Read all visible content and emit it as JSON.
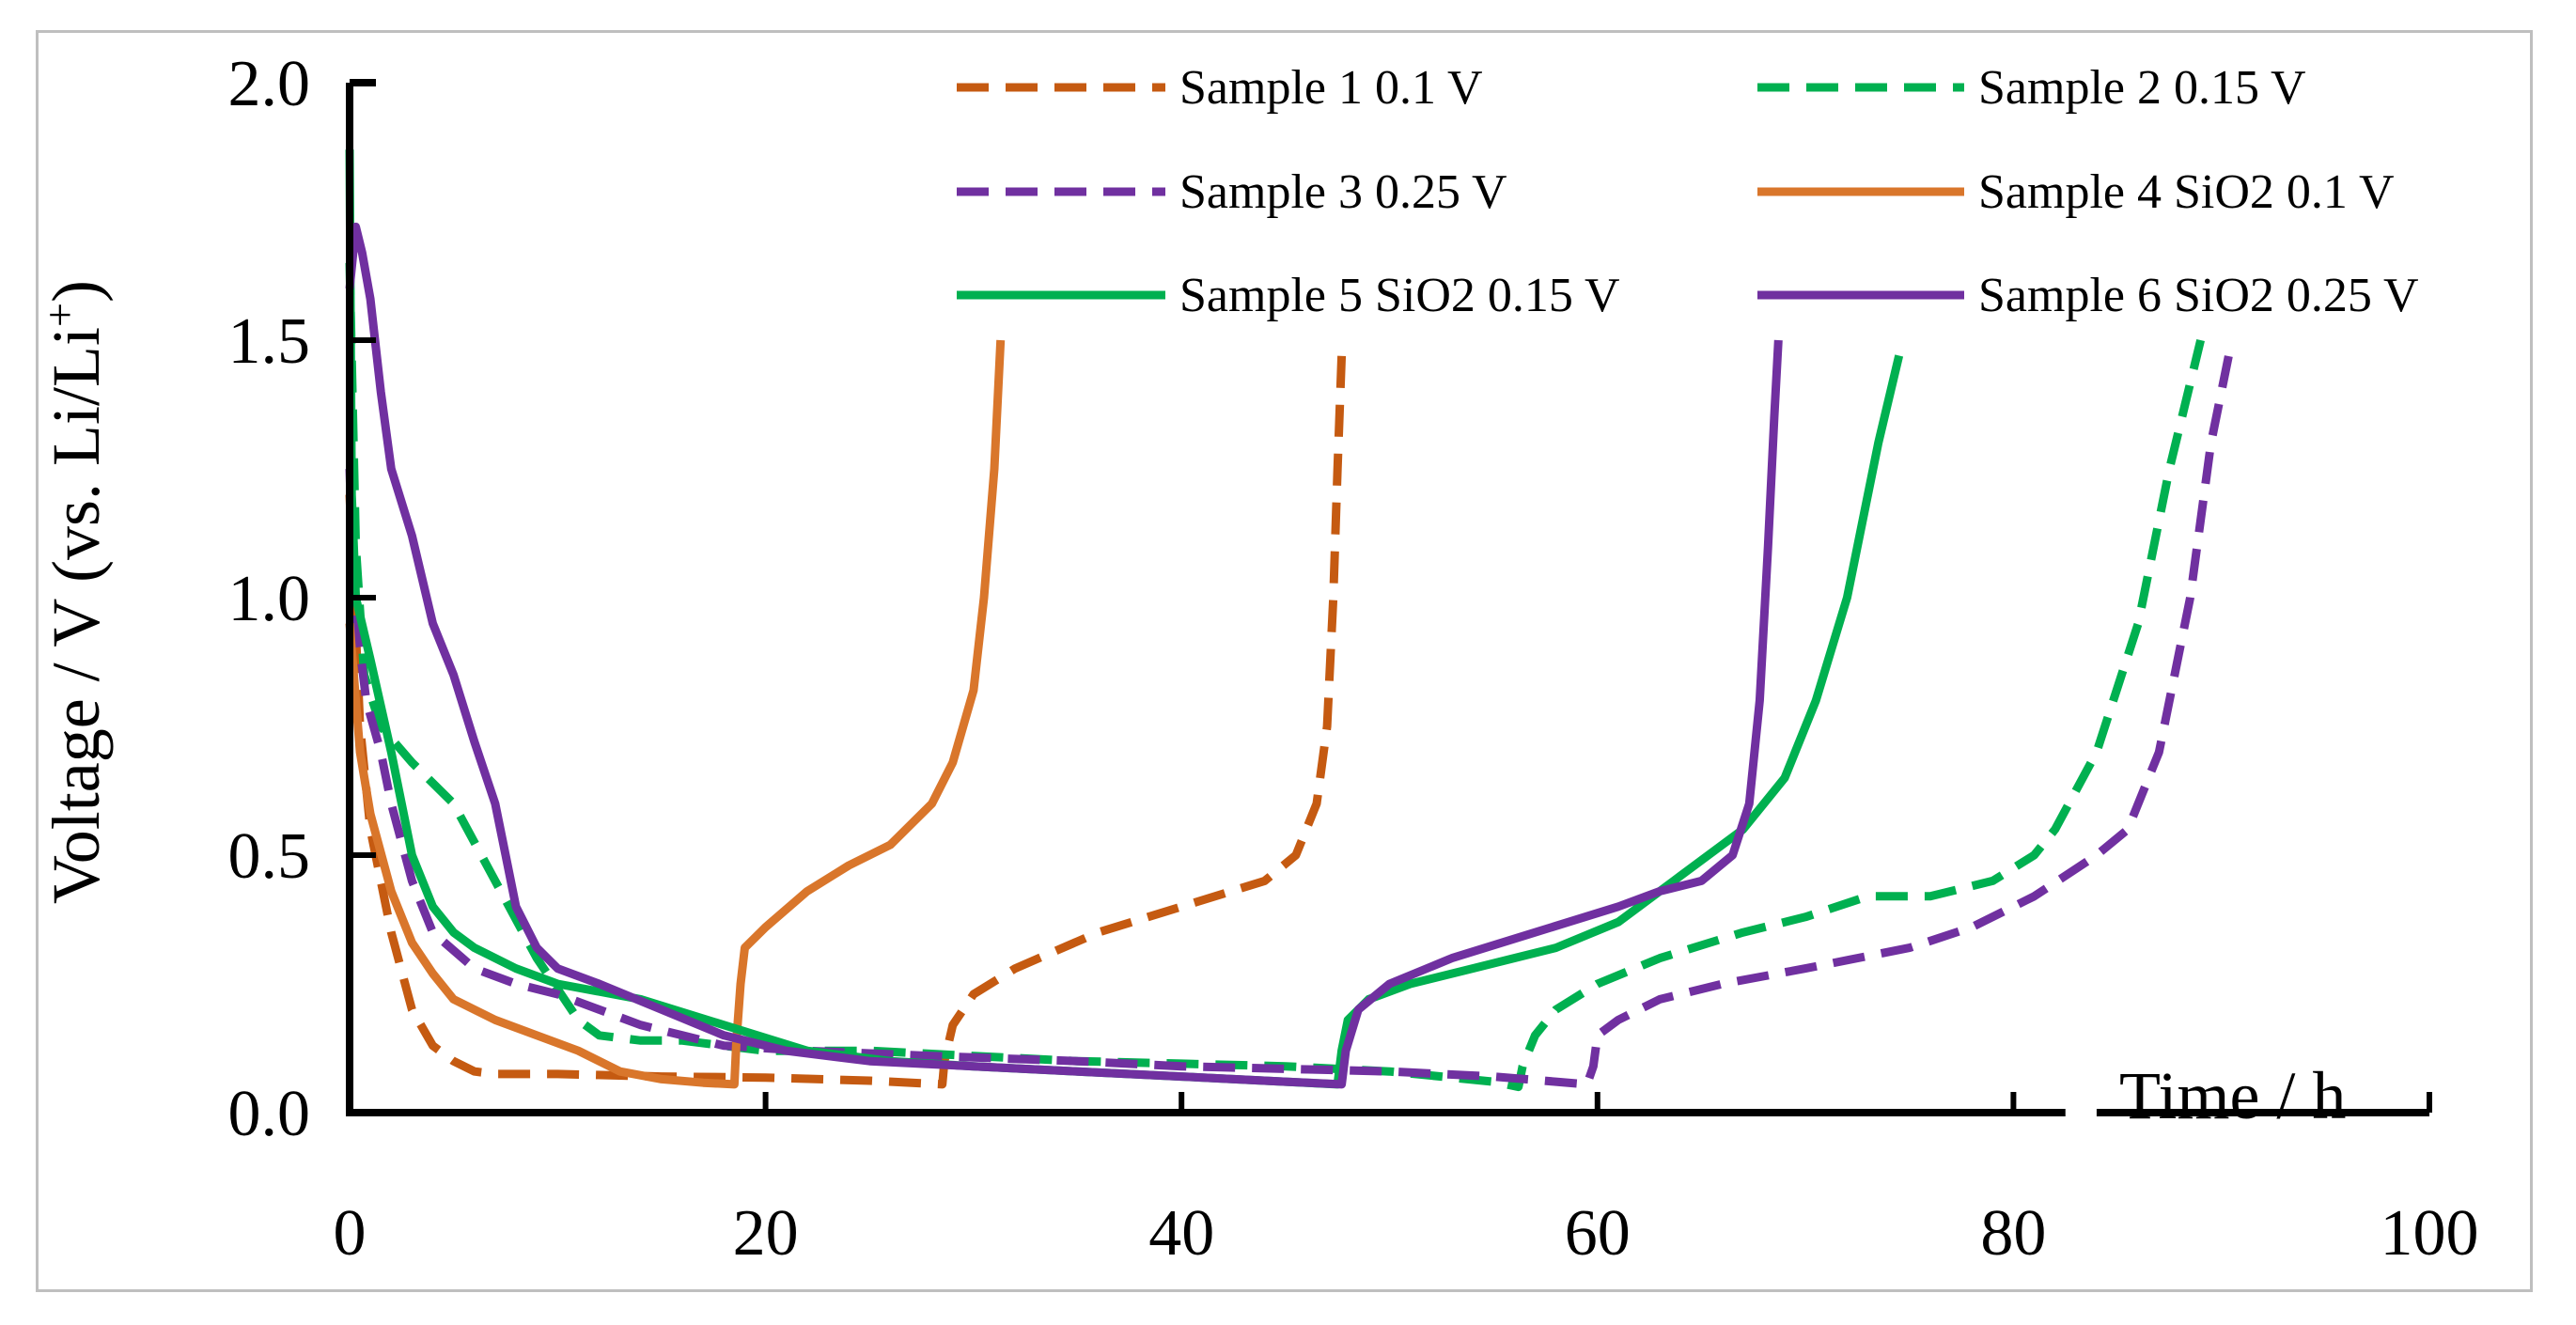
{
  "chart_data": {
    "type": "line",
    "title": "",
    "xlabel": "Time / h",
    "ylabel": "Voltage / V (vs. Li/Li",
    "ylabel_sup": "+",
    "ylabel_end": ")",
    "xlim": [
      0,
      100
    ],
    "ylim": [
      0,
      2
    ],
    "xticks": [
      0,
      20,
      40,
      60,
      80,
      100
    ],
    "yticks": [
      0,
      0.5,
      1,
      1.5,
      2
    ],
    "xtick_labels": [
      "0",
      "20",
      "40",
      "60",
      "80",
      "100"
    ],
    "ytick_labels": [
      "0.0",
      "0.5",
      "1.0",
      "1.5",
      "2.0"
    ],
    "grid": false,
    "legend_position": "top-right",
    "series": [
      {
        "name": "Sample 1 0.1 V",
        "color": "#c55a11",
        "dash": "dashed",
        "points": [
          [
            0,
            1.2
          ],
          [
            0.5,
            0.75
          ],
          [
            1,
            0.55
          ],
          [
            2,
            0.35
          ],
          [
            3,
            0.2
          ],
          [
            4,
            0.13
          ],
          [
            5,
            0.1
          ],
          [
            6,
            0.08
          ],
          [
            7,
            0.075
          ],
          [
            10,
            0.075
          ],
          [
            15,
            0.07
          ],
          [
            20,
            0.068
          ],
          [
            25,
            0.062
          ],
          [
            28.5,
            0.055
          ],
          [
            28.6,
            0.1
          ],
          [
            29,
            0.17
          ],
          [
            30,
            0.23
          ],
          [
            32,
            0.28
          ],
          [
            36,
            0.35
          ],
          [
            40,
            0.4
          ],
          [
            44,
            0.45
          ],
          [
            45.5,
            0.5
          ],
          [
            46.5,
            0.6
          ],
          [
            47,
            0.75
          ],
          [
            47.3,
            1.0
          ],
          [
            47.5,
            1.25
          ],
          [
            47.7,
            1.47
          ]
        ]
      },
      {
        "name": "Sample 2 0.15 V",
        "color": "#00b050",
        "dash": "dashed",
        "points": [
          [
            0,
            1.65
          ],
          [
            0.3,
            1.1
          ],
          [
            0.7,
            0.85
          ],
          [
            1.5,
            0.75
          ],
          [
            3,
            0.68
          ],
          [
            5,
            0.6
          ],
          [
            7,
            0.45
          ],
          [
            9,
            0.3
          ],
          [
            11,
            0.18
          ],
          [
            12,
            0.15
          ],
          [
            14,
            0.14
          ],
          [
            16,
            0.14
          ],
          [
            18,
            0.13
          ],
          [
            20,
            0.12
          ],
          [
            25,
            0.12
          ],
          [
            30,
            0.11
          ],
          [
            35,
            0.1
          ],
          [
            40,
            0.095
          ],
          [
            45,
            0.09
          ],
          [
            50,
            0.08
          ],
          [
            55,
            0.06
          ],
          [
            56.2,
            0.05
          ],
          [
            56.4,
            0.09
          ],
          [
            57,
            0.15
          ],
          [
            58,
            0.2
          ],
          [
            60,
            0.25
          ],
          [
            63,
            0.3
          ],
          [
            67,
            0.35
          ],
          [
            70,
            0.38
          ],
          [
            73,
            0.42
          ],
          [
            76,
            0.42
          ],
          [
            79,
            0.45
          ],
          [
            81,
            0.5
          ],
          [
            82,
            0.55
          ],
          [
            84,
            0.7
          ],
          [
            86,
            0.95
          ],
          [
            87.5,
            1.25
          ],
          [
            89,
            1.5
          ]
        ]
      },
      {
        "name": "Sample 3 0.25 V",
        "color": "#7030a0",
        "dash": "dashed",
        "points": [
          [
            0,
            1.25
          ],
          [
            0.2,
            1.0
          ],
          [
            0.8,
            0.8
          ],
          [
            1.5,
            0.7
          ],
          [
            2,
            0.6
          ],
          [
            3,
            0.45
          ],
          [
            4,
            0.35
          ],
          [
            6,
            0.28
          ],
          [
            8,
            0.25
          ],
          [
            10,
            0.23
          ],
          [
            12,
            0.2
          ],
          [
            14,
            0.17
          ],
          [
            16,
            0.15
          ],
          [
            18,
            0.13
          ],
          [
            22,
            0.12
          ],
          [
            28,
            0.11
          ],
          [
            35,
            0.1
          ],
          [
            40,
            0.09
          ],
          [
            45,
            0.085
          ],
          [
            50,
            0.08
          ],
          [
            55,
            0.07
          ],
          [
            58,
            0.06
          ],
          [
            59.5,
            0.055
          ],
          [
            59.8,
            0.09
          ],
          [
            60,
            0.15
          ],
          [
            61,
            0.18
          ],
          [
            63,
            0.22
          ],
          [
            66,
            0.25
          ],
          [
            70,
            0.28
          ],
          [
            75,
            0.32
          ],
          [
            78,
            0.36
          ],
          [
            81,
            0.42
          ],
          [
            84,
            0.5
          ],
          [
            85.5,
            0.55
          ],
          [
            87,
            0.7
          ],
          [
            88.5,
            1.0
          ],
          [
            89.5,
            1.3
          ],
          [
            90.5,
            1.5
          ]
        ]
      },
      {
        "name": "Sample 4 SiO2 0.1 V",
        "color": "#d9762b",
        "dash": "solid",
        "points": [
          [
            0,
            0.95
          ],
          [
            0.5,
            0.7
          ],
          [
            1,
            0.58
          ],
          [
            2,
            0.43
          ],
          [
            3,
            0.33
          ],
          [
            4,
            0.27
          ],
          [
            5,
            0.22
          ],
          [
            7,
            0.18
          ],
          [
            9,
            0.15
          ],
          [
            11,
            0.12
          ],
          [
            13,
            0.08
          ],
          [
            15,
            0.065
          ],
          [
            17,
            0.058
          ],
          [
            18.5,
            0.055
          ],
          [
            18.6,
            0.14
          ],
          [
            18.8,
            0.25
          ],
          [
            19,
            0.32
          ],
          [
            20,
            0.36
          ],
          [
            22,
            0.43
          ],
          [
            24,
            0.48
          ],
          [
            26,
            0.52
          ],
          [
            28,
            0.6
          ],
          [
            29,
            0.68
          ],
          [
            30,
            0.82
          ],
          [
            30.5,
            1.0
          ],
          [
            31,
            1.25
          ],
          [
            31.3,
            1.5
          ]
        ]
      },
      {
        "name": "Sample 5 SiO2 0.15 V",
        "color": "#00b050",
        "dash": "solid",
        "points": [
          [
            0,
            1.87
          ],
          [
            0.1,
            1.2
          ],
          [
            0.3,
            1.0
          ],
          [
            1,
            0.88
          ],
          [
            2,
            0.7
          ],
          [
            3,
            0.5
          ],
          [
            4,
            0.4
          ],
          [
            5,
            0.35
          ],
          [
            6,
            0.32
          ],
          [
            8,
            0.28
          ],
          [
            10,
            0.25
          ],
          [
            14,
            0.22
          ],
          [
            18,
            0.17
          ],
          [
            22,
            0.12
          ],
          [
            26,
            0.1
          ],
          [
            30,
            0.09
          ],
          [
            35,
            0.08
          ],
          [
            40,
            0.07
          ],
          [
            45,
            0.06
          ],
          [
            47.5,
            0.055
          ],
          [
            47.7,
            0.12
          ],
          [
            48,
            0.18
          ],
          [
            49,
            0.22
          ],
          [
            51,
            0.25
          ],
          [
            54,
            0.28
          ],
          [
            58,
            0.32
          ],
          [
            61,
            0.37
          ],
          [
            64,
            0.46
          ],
          [
            67,
            0.55
          ],
          [
            69,
            0.65
          ],
          [
            70.5,
            0.8
          ],
          [
            72,
            1.0
          ],
          [
            73.5,
            1.3
          ],
          [
            74.5,
            1.47
          ]
        ]
      },
      {
        "name": "Sample 6 SiO2 0.25 V",
        "color": "#7030a0",
        "dash": "solid",
        "points": [
          [
            0,
            1.6
          ],
          [
            0.3,
            1.72
          ],
          [
            0.6,
            1.67
          ],
          [
            1,
            1.58
          ],
          [
            1.5,
            1.4
          ],
          [
            2,
            1.25
          ],
          [
            3,
            1.12
          ],
          [
            4,
            0.95
          ],
          [
            5,
            0.85
          ],
          [
            6,
            0.72
          ],
          [
            7,
            0.6
          ],
          [
            7.5,
            0.5
          ],
          [
            8,
            0.4
          ],
          [
            9,
            0.32
          ],
          [
            10,
            0.28
          ],
          [
            12,
            0.25
          ],
          [
            15,
            0.2
          ],
          [
            18,
            0.15
          ],
          [
            21,
            0.12
          ],
          [
            25,
            0.1
          ],
          [
            30,
            0.09
          ],
          [
            35,
            0.08
          ],
          [
            40,
            0.07
          ],
          [
            45,
            0.06
          ],
          [
            47.7,
            0.055
          ],
          [
            47.9,
            0.12
          ],
          [
            48.5,
            0.2
          ],
          [
            50,
            0.25
          ],
          [
            53,
            0.3
          ],
          [
            57,
            0.35
          ],
          [
            61,
            0.4
          ],
          [
            63,
            0.43
          ],
          [
            65,
            0.45
          ],
          [
            66.5,
            0.5
          ],
          [
            67.3,
            0.6
          ],
          [
            67.8,
            0.8
          ],
          [
            68.2,
            1.1
          ],
          [
            68.5,
            1.35
          ],
          [
            68.7,
            1.5
          ]
        ]
      }
    ]
  }
}
